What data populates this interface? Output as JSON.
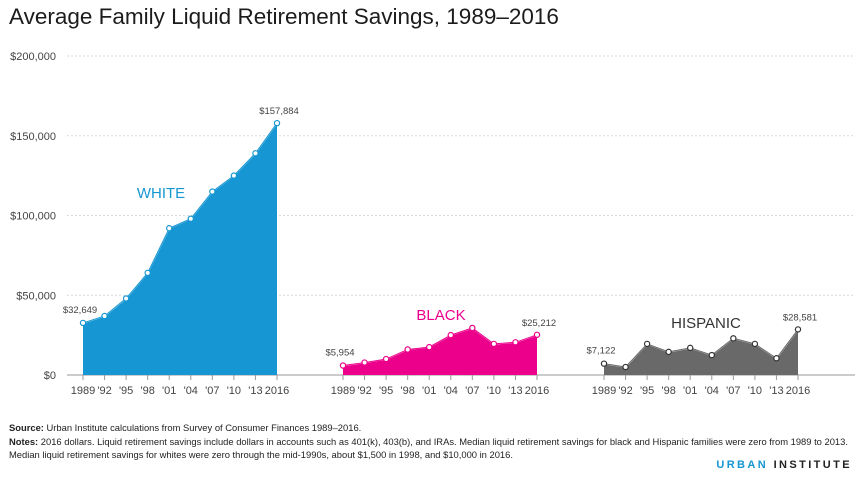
{
  "title": "Average Family Liquid Retirement Savings, 1989–2016",
  "chart_data": {
    "type": "area",
    "categories": [
      "1989",
      "'92",
      "'95",
      "'98",
      "'01",
      "'04",
      "'07",
      "'10",
      "'13",
      "2016"
    ],
    "ylim": [
      0,
      200000
    ],
    "y_ticks": [
      0,
      50000,
      100000,
      150000,
      200000
    ],
    "y_tick_labels": [
      "$0",
      "$50,000",
      "$100,000",
      "$150,000",
      "$200,000"
    ],
    "grid": true,
    "series": [
      {
        "name": "WHITE",
        "color": "#1696d2",
        "values": [
          32649,
          37000,
          48000,
          64000,
          92000,
          98000,
          115000,
          125000,
          139000,
          157884
        ],
        "first_label": "$32,649",
        "last_label": "$157,884"
      },
      {
        "name": "BLACK",
        "color": "#ec008b",
        "values": [
          5954,
          7800,
          10000,
          16000,
          17500,
          25000,
          29500,
          19500,
          20500,
          25212
        ],
        "first_label": "$5,954",
        "last_label": "$25,212"
      },
      {
        "name": "HISPANIC",
        "color": "#696969",
        "values": [
          7122,
          5000,
          19500,
          14500,
          17000,
          12500,
          23000,
          19500,
          10500,
          28581
        ],
        "first_label": "$7,122",
        "last_label": "$28,581"
      }
    ]
  },
  "footer": {
    "source_label": "Source:",
    "source_text": "Urban Institute calculations from Survey of Consumer Finances 1989–2016.",
    "notes_label": "Notes:",
    "notes_text": "2016 dollars. Liquid retirement savings include dollars in accounts such as 401(k), 403(b), and IRAs. Median liquid retirement savings for black and Hispanic families were zero from 1989 to 2013. Median liquid retirement savings for whites were zero through the mid-1990s, about $1,500 in 1998, and $10,000 in 2016.",
    "brand_part1": "URBAN",
    "brand_part2": "INSTITUTE"
  }
}
